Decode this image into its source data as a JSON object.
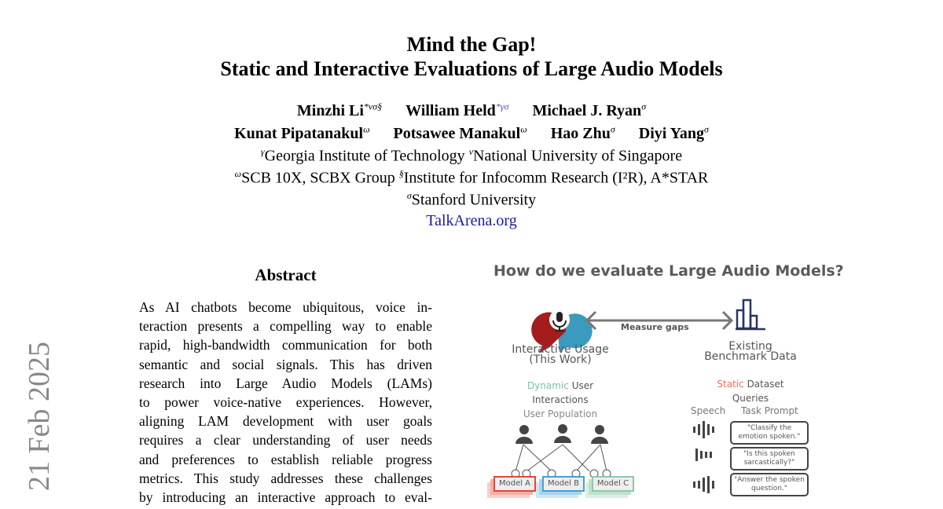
{
  "title": {
    "line1": "Mind the Gap!",
    "line2": "Static and Interactive Evaluations of Large Audio Models"
  },
  "authors": [
    {
      "name": "Minzhi Li",
      "sup": "*νσ§"
    },
    {
      "name": "William Held",
      "sup": "*γσ"
    },
    {
      "name": "Michael J. Ryan",
      "sup": "σ"
    },
    {
      "name": "Kunat Pipatanakul",
      "sup": "ω"
    },
    {
      "name": "Potsawee Manakul",
      "sup": "ω"
    },
    {
      "name": "Hao Zhu",
      "sup": "σ"
    },
    {
      "name": "Diyi Yang",
      "sup": "σ"
    }
  ],
  "affiliations": [
    {
      "sup": "γ",
      "name": "Georgia Institute of Technology"
    },
    {
      "sup": "ν",
      "name": "National University of Singapore"
    },
    {
      "sup": "ω",
      "name": "SCB 10X, SCBX Group"
    },
    {
      "sup": "§",
      "name": "Institute for Infocomm Research (I²R), A*STAR"
    },
    {
      "sup": "σ",
      "name": "Stanford University"
    }
  ],
  "link": "TalkArena.org",
  "date_stamp": "21 Feb 2025",
  "abstract": {
    "heading": "Abstract",
    "lines": [
      "As AI chatbots become ubiquitous, voice in-",
      "teraction presents a compelling way to enable",
      "rapid, high-bandwidth communication for both",
      "semantic and social signals.  This has driven",
      "research into Large Audio Models (LAMs)",
      "to power voice-native experiences.  However,",
      "aligning LAM development with user goals",
      "requires a clear understanding of user needs",
      "and preferences to establish reliable progress",
      "metrics. This study addresses these challenges",
      "by introducing an interactive approach to eval-"
    ]
  },
  "figure": {
    "title": "How do we evaluate Large Audio Models?",
    "arrow_label": "Measure gaps",
    "left_title1": "Interactive Usage",
    "left_title2": "(This Work)",
    "dynamic": "Dynamic",
    "user": "User",
    "interactions": "Interactions",
    "population": "User Population",
    "models": [
      "Model A",
      "Model B",
      "Model C"
    ],
    "right_title1": "Existing",
    "right_title2": "Benchmark Data",
    "static": "Static",
    "dataset": "Dataset",
    "queries": "Queries",
    "speech": "Speech",
    "task_prompt": "Task Prompt",
    "prompts": [
      [
        "\"Classify the",
        "emotion spoken.\""
      ],
      [
        "\"Is this spoken",
        "sarcastically?\""
      ],
      [
        "\"Answer the spoken",
        "question.\""
      ]
    ],
    "colors": {
      "dynamic": "#7fbfa0",
      "static": "#f0705a",
      "model_a": "#e0483a",
      "model_b": "#4a9fd0",
      "model_c": "#8fc8a8",
      "bubble_red": "#a51c1c",
      "bubble_blue": "#3a9bbf",
      "bar_navy": "#2a3560"
    }
  }
}
